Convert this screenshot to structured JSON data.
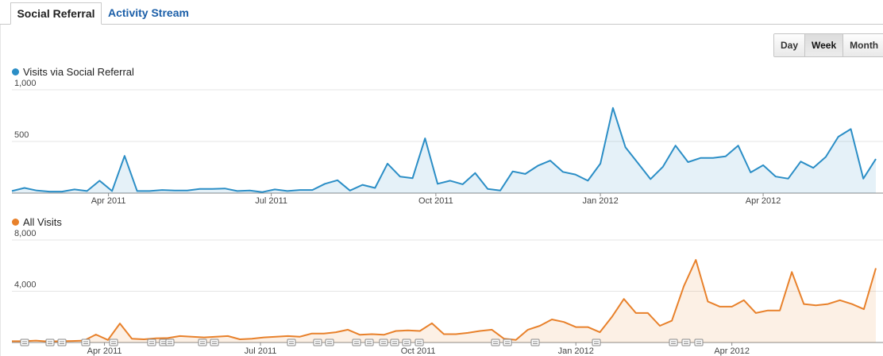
{
  "tabs": [
    {
      "label": "Social Referral"
    },
    {
      "label": "Activity Stream"
    }
  ],
  "granularity": {
    "options": [
      "Day",
      "Week",
      "Month"
    ],
    "selected": "Week"
  },
  "chart_data": [
    {
      "type": "area",
      "title": "Visits via Social Referral",
      "color": "#2b8ec6",
      "ylim": [
        0,
        1000
      ],
      "yticks": [
        500,
        1000
      ],
      "ytick_labels": [
        "500",
        "1,000"
      ],
      "xtick_labels": [
        "Apr 2011",
        "Jul 2011",
        "Oct 2011",
        "Jan 2012",
        "Apr 2012"
      ],
      "x_start": "2011-02-06",
      "x_step": "week",
      "values": [
        20,
        50,
        25,
        15,
        15,
        35,
        20,
        120,
        20,
        360,
        20,
        20,
        30,
        25,
        25,
        40,
        40,
        45,
        20,
        25,
        10,
        35,
        20,
        30,
        30,
        90,
        125,
        25,
        80,
        50,
        285,
        160,
        145,
        530,
        90,
        120,
        85,
        195,
        40,
        25,
        210,
        185,
        265,
        315,
        205,
        180,
        120,
        285,
        825,
        445,
        290,
        135,
        255,
        460,
        300,
        340,
        340,
        355,
        460,
        200,
        270,
        160,
        140,
        305,
        245,
        350,
        545,
        620,
        140,
        330
      ],
      "grid": true,
      "legend": "top-left"
    },
    {
      "type": "area",
      "title": "All Visits",
      "color": "#e8812b",
      "ylim": [
        0,
        8000
      ],
      "yticks": [
        4000,
        8000
      ],
      "ytick_labels": [
        "4,000",
        "8,000"
      ],
      "xtick_labels": [
        "Apr 2011",
        "Jul 2011",
        "Oct 2011",
        "Jan 2012",
        "Apr 2012"
      ],
      "x_start": "2011-02-06",
      "x_step": "week",
      "values": [
        100,
        100,
        150,
        80,
        100,
        120,
        150,
        620,
        200,
        1480,
        300,
        250,
        320,
        350,
        500,
        450,
        400,
        450,
        500,
        250,
        300,
        400,
        450,
        500,
        450,
        700,
        700,
        800,
        1000,
        600,
        650,
        600,
        900,
        950,
        900,
        1500,
        650,
        650,
        750,
        900,
        1000,
        300,
        200,
        1000,
        1300,
        1800,
        1600,
        1200,
        1200,
        800,
        2000,
        3400,
        2300,
        2300,
        1300,
        1700,
        4400,
        6450,
        3200,
        2800,
        2800,
        3300,
        2300,
        2500,
        2500,
        5500,
        3000,
        2900,
        3000,
        3300,
        3000,
        2600,
        5800
      ],
      "grid": true,
      "legend": "top-left"
    }
  ]
}
